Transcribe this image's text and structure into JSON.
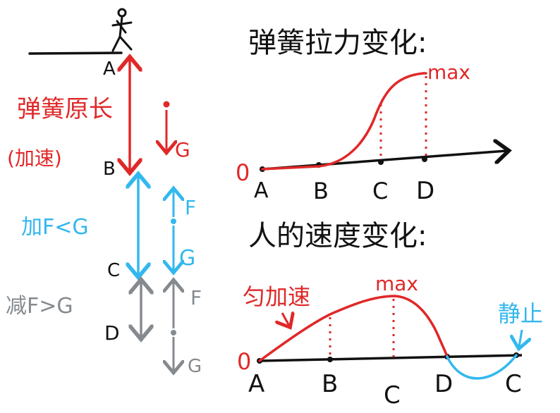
{
  "colors": {
    "black": "#111111",
    "red": "#e02828",
    "blue": "#33b8ee",
    "gray": "#858a8f"
  },
  "left_panel": {
    "point_a": "A",
    "point_b": "B",
    "point_c": "C",
    "point_d": "D",
    "spring_natural_length": "弹簧原长",
    "accelerate_paren": "(加速)",
    "accelerate_f_less_g": "加F<G",
    "decelerate_f_greater_g": "减F>G",
    "force_g": "G",
    "force_f": "F"
  },
  "top_graph": {
    "title": "弹簧拉力变化:",
    "origin": "0",
    "ticks": [
      "A",
      "B",
      "C",
      "D"
    ],
    "max_label": "max"
  },
  "bottom_graph": {
    "title": "人的速度变化:",
    "origin": "0",
    "ticks": [
      "A",
      "B",
      "C",
      "D",
      "C"
    ],
    "max_label": "max",
    "uniform_accel_label": "匀加速",
    "rest_label": "静止"
  }
}
